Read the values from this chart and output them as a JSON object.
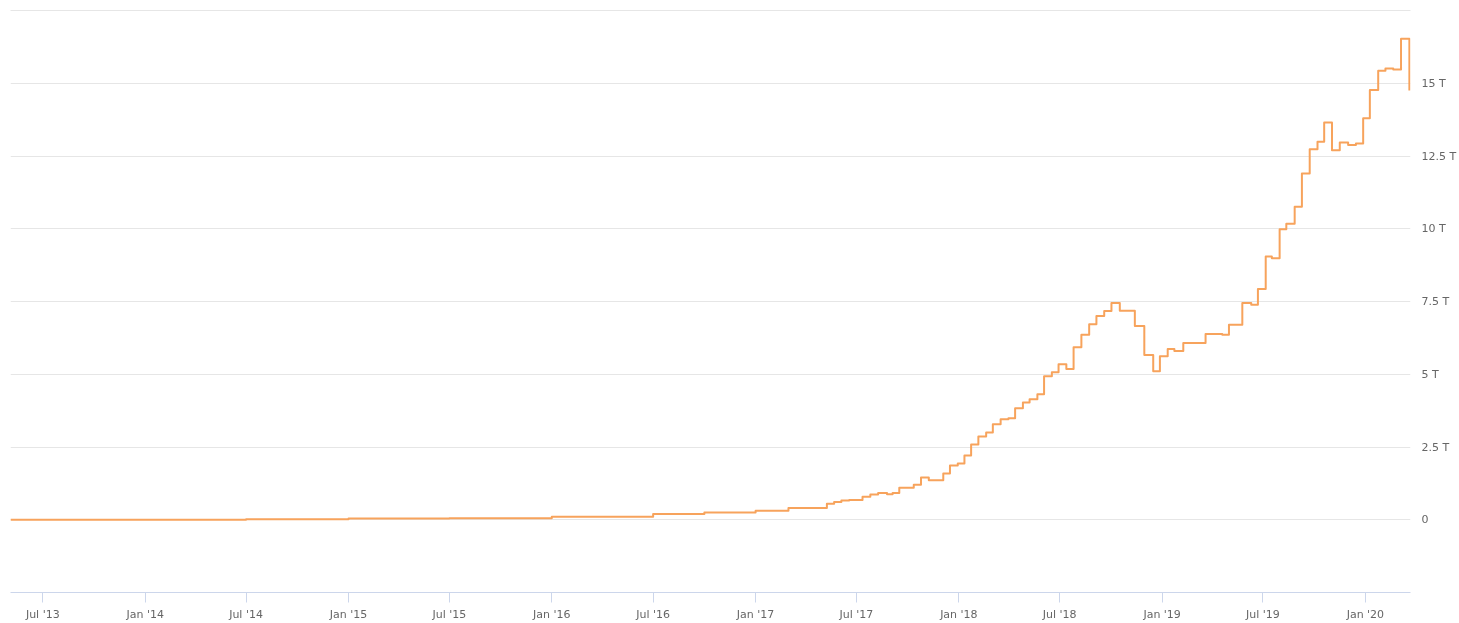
{
  "chart_data": {
    "type": "step",
    "x": [
      "2013-05-04",
      "2014-07-01",
      "2015-01-01",
      "2015-07-01",
      "2016-01-01",
      "2016-07-01",
      "2016-10-01",
      "2017-01-01",
      "2017-03-01",
      "2017-05-09",
      "2017-05-22",
      "2017-06-04",
      "2017-06-18",
      "2017-07-12",
      "2017-07-26",
      "2017-08-09",
      "2017-08-25",
      "2017-09-04",
      "2017-09-16",
      "2017-10-12",
      "2017-10-25",
      "2017-11-08",
      "2017-12-04",
      "2017-12-16",
      "2017-12-30",
      "2018-01-11",
      "2018-01-23",
      "2018-02-05",
      "2018-02-19",
      "2018-03-03",
      "2018-03-17",
      "2018-03-31",
      "2018-04-12",
      "2018-04-26",
      "2018-05-08",
      "2018-05-22",
      "2018-06-03",
      "2018-06-17",
      "2018-06-29",
      "2018-07-13",
      "2018-07-26",
      "2018-08-09",
      "2018-08-23",
      "2018-09-05",
      "2018-09-19",
      "2018-10-02",
      "2018-10-17",
      "2018-11-13",
      "2018-11-30",
      "2018-12-16",
      "2018-12-28",
      "2019-01-11",
      "2019-01-23",
      "2019-02-08",
      "2019-03-20",
      "2019-04-19",
      "2019-05-01",
      "2019-05-25",
      "2019-06-10",
      "2019-06-22",
      "2019-07-06",
      "2019-07-17",
      "2019-07-31",
      "2019-08-12",
      "2019-08-27",
      "2019-09-09",
      "2019-09-23",
      "2019-10-07",
      "2019-10-19",
      "2019-11-02",
      "2019-11-16",
      "2019-12-01",
      "2019-12-15",
      "2019-12-28",
      "2020-01-09",
      "2020-01-24",
      "2020-02-06",
      "2020-02-20",
      "2020-03-05",
      "2020-03-20"
    ],
    "series": [
      {
        "color": "#f7a35c",
        "values": [
          0.0,
          0.02,
          0.04,
          0.05,
          0.1,
          0.2,
          0.25,
          0.31,
          0.4,
          0.55,
          0.61,
          0.66,
          0.68,
          0.79,
          0.87,
          0.92,
          0.88,
          0.92,
          1.1,
          1.2,
          1.45,
          1.36,
          1.59,
          1.86,
          1.93,
          2.21,
          2.59,
          2.86,
          3.0,
          3.28,
          3.45,
          3.49,
          3.83,
          4.03,
          4.14,
          4.31,
          4.93,
          5.07,
          5.34,
          5.18,
          5.93,
          6.36,
          6.72,
          7.0,
          7.17,
          7.45,
          7.18,
          6.66,
          5.66,
          5.1,
          5.62,
          5.87,
          5.8,
          6.07,
          6.38,
          6.36,
          6.7,
          7.45,
          7.39,
          7.93,
          9.05,
          8.99,
          9.98,
          10.17,
          10.76,
          11.9,
          12.73,
          12.99,
          13.65,
          12.7,
          12.96,
          12.88,
          12.93,
          13.8,
          14.77,
          15.43,
          15.51,
          15.47,
          16.53,
          14.75
        ]
      }
    ],
    "xlim": [
      "2013-05-04",
      "2020-03-22"
    ],
    "xticks": [
      {
        "value": "2013-07-01",
        "label": "Jul '13"
      },
      {
        "value": "2014-01-01",
        "label": "Jan '14"
      },
      {
        "value": "2014-07-01",
        "label": "Jul '14"
      },
      {
        "value": "2015-01-01",
        "label": "Jan '15"
      },
      {
        "value": "2015-07-01",
        "label": "Jul '15"
      },
      {
        "value": "2016-01-01",
        "label": "Jan '16"
      },
      {
        "value": "2016-07-01",
        "label": "Jul '16"
      },
      {
        "value": "2017-01-01",
        "label": "Jan '17"
      },
      {
        "value": "2017-07-01",
        "label": "Jul '17"
      },
      {
        "value": "2018-01-01",
        "label": "Jan '18"
      },
      {
        "value": "2018-07-01",
        "label": "Jul '18"
      },
      {
        "value": "2019-01-01",
        "label": "Jan '19"
      },
      {
        "value": "2019-07-01",
        "label": "Jul '19"
      },
      {
        "value": "2020-01-01",
        "label": "Jan '20"
      }
    ],
    "ylim": [
      -2.5,
      17.5
    ],
    "yticks": [
      0,
      {
        "value": 2.5,
        "label": "2.5 T"
      },
      {
        "value": 5,
        "label": "5 T"
      },
      {
        "value": 7.5,
        "label": "7.5 T"
      },
      {
        "value": 10,
        "label": "10 T"
      },
      {
        "value": 12.5,
        "label": "12.5 T"
      },
      {
        "value": 15,
        "label": "15 T"
      }
    ],
    "grid": "y",
    "line_style": "solid"
  }
}
